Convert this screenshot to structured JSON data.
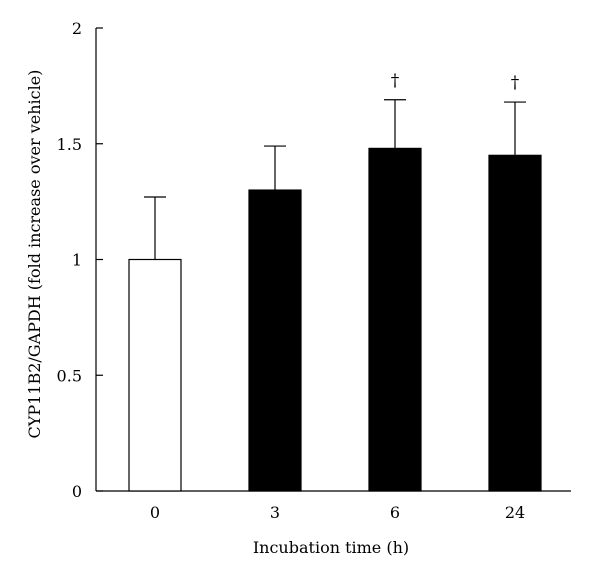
{
  "chart_data": {
    "type": "bar",
    "xlabel": "Incubation time (h)",
    "ylabel": "CYP11B2/GAPDH (fold increase over vehicle)",
    "ylim": [
      0,
      2
    ],
    "yticks": [
      "0",
      "0.5",
      "1",
      "1.5",
      "2"
    ],
    "categories": [
      "0",
      "3",
      "6",
      "24"
    ],
    "values": [
      1.0,
      1.3,
      1.48,
      1.45
    ],
    "errors": [
      0.27,
      0.19,
      0.21,
      0.23
    ],
    "annotations": [
      "",
      "",
      "†",
      "†"
    ],
    "bar_colors": [
      "#ffffff",
      "#000000",
      "#000000",
      "#000000"
    ],
    "grid": false,
    "legend": "none"
  }
}
